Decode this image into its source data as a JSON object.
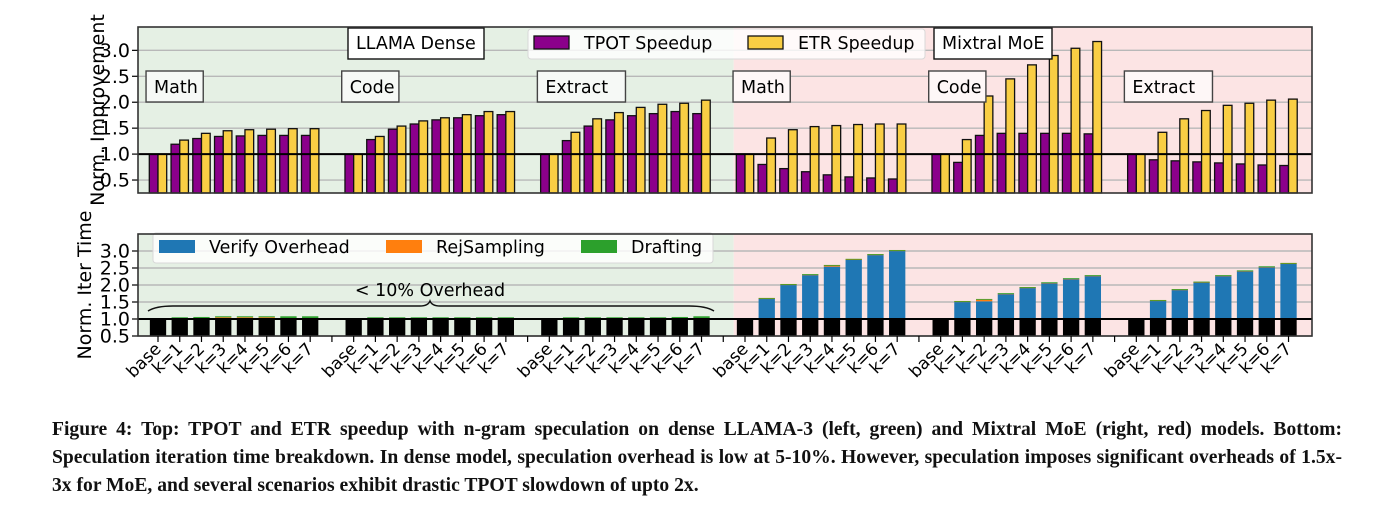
{
  "chart_data": [
    {
      "type": "bar",
      "panel": "top",
      "ylabel": "Norm. Improvement",
      "ylim": [
        0.25,
        3.45
      ],
      "yticks": [
        "0.5",
        "1.0",
        "1.5",
        "2.0",
        "2.5",
        "3.0"
      ],
      "ytick_values": [
        0.5,
        1.0,
        1.5,
        2.0,
        2.5,
        3.0
      ],
      "grid": true,
      "reference_line": 1.0,
      "legend": {
        "placement": "top-center",
        "entries": [
          "TPOT Speedup",
          "ETR Speedup"
        ]
      },
      "colors": {
        "TPOT Speedup": "#8b008b",
        "ETR Speedup": "#f9ce44"
      },
      "model_labels": [
        "LLAMA Dense",
        "Mixtral MoE"
      ],
      "categories": [
        "base",
        "k=1",
        "k=2",
        "k=3",
        "k=4",
        "k=5",
        "k=6",
        "k=7"
      ],
      "groups": [
        {
          "model": "LLAMA Dense",
          "task": "Math",
          "series": [
            {
              "name": "TPOT Speedup",
              "values": [
                1.0,
                1.19,
                1.3,
                1.34,
                1.35,
                1.36,
                1.36,
                1.36
              ]
            },
            {
              "name": "ETR Speedup",
              "values": [
                1.0,
                1.27,
                1.4,
                1.45,
                1.47,
                1.48,
                1.49,
                1.49
              ]
            }
          ]
        },
        {
          "model": "LLAMA Dense",
          "task": "Code",
          "series": [
            {
              "name": "TPOT Speedup",
              "values": [
                1.0,
                1.28,
                1.48,
                1.58,
                1.66,
                1.7,
                1.74,
                1.76
              ]
            },
            {
              "name": "ETR Speedup",
              "values": [
                1.0,
                1.34,
                1.54,
                1.64,
                1.7,
                1.76,
                1.82,
                1.82
              ]
            }
          ]
        },
        {
          "model": "LLAMA Dense",
          "task": "Extract",
          "series": [
            {
              "name": "TPOT Speedup",
              "values": [
                1.0,
                1.26,
                1.54,
                1.66,
                1.74,
                1.78,
                1.82,
                1.78
              ]
            },
            {
              "name": "ETR Speedup",
              "values": [
                1.0,
                1.42,
                1.68,
                1.8,
                1.9,
                1.96,
                1.98,
                2.04
              ]
            }
          ]
        },
        {
          "model": "Mixtral MoE",
          "task": "Math",
          "series": [
            {
              "name": "TPOT Speedup",
              "values": [
                1.0,
                0.8,
                0.72,
                0.66,
                0.6,
                0.56,
                0.54,
                0.52
              ]
            },
            {
              "name": "ETR Speedup",
              "values": [
                1.0,
                1.31,
                1.47,
                1.53,
                1.55,
                1.57,
                1.58,
                1.58
              ]
            }
          ]
        },
        {
          "model": "Mixtral MoE",
          "task": "Code",
          "series": [
            {
              "name": "TPOT Speedup",
              "values": [
                1.0,
                0.84,
                1.36,
                1.4,
                1.4,
                1.4,
                1.4,
                1.39
              ]
            },
            {
              "name": "ETR Speedup",
              "values": [
                1.0,
                1.28,
                2.12,
                2.45,
                2.72,
                2.9,
                3.04,
                3.17
              ]
            }
          ]
        },
        {
          "model": "Mixtral MoE",
          "task": "Extract",
          "series": [
            {
              "name": "TPOT Speedup",
              "values": [
                1.0,
                0.89,
                0.87,
                0.85,
                0.83,
                0.81,
                0.79,
                0.78
              ]
            },
            {
              "name": "ETR Speedup",
              "values": [
                1.0,
                1.42,
                1.68,
                1.84,
                1.94,
                1.98,
                2.04,
                2.06
              ]
            }
          ]
        }
      ]
    },
    {
      "type": "bar",
      "stacked": true,
      "panel": "bottom",
      "ylabel": "Norm. Iter Time",
      "ylim": [
        0.5,
        3.5
      ],
      "yticks": [
        "0.5",
        "1.0",
        "1.5",
        "2.0",
        "2.5",
        "3.0"
      ],
      "ytick_values": [
        0.5,
        1.0,
        1.5,
        2.0,
        2.5,
        3.0
      ],
      "grid": true,
      "reference_line": 1.0,
      "legend": {
        "placement": "top-left",
        "entries": [
          "Verify Overhead",
          "RejSampling",
          "Drafting"
        ]
      },
      "colors": {
        "Base": "#000000",
        "Verify Overhead": "#1f77b4",
        "RejSampling": "#ff7f0e",
        "Drafting": "#2ca02c"
      },
      "annotation": "< 10% Overhead",
      "categories": [
        "base",
        "k=1",
        "k=2",
        "k=3",
        "k=4",
        "k=5",
        "k=6",
        "k=7"
      ],
      "groups": [
        {
          "model": "LLAMA Dense",
          "task": "Math",
          "series": [
            {
              "name": "Base",
              "values": [
                1.0,
                1.0,
                1.0,
                1.0,
                1.0,
                1.0,
                1.0,
                1.0
              ]
            },
            {
              "name": "Verify Overhead",
              "values": [
                0,
                0.02,
                0.0,
                0.0,
                0.0,
                0.0,
                0.0,
                0.0
              ]
            },
            {
              "name": "RejSampling",
              "values": [
                0,
                0.01,
                0.03,
                0.05,
                0.05,
                0.05,
                0.03,
                0.03
              ]
            },
            {
              "name": "Drafting",
              "values": [
                0,
                0.02,
                0.03,
                0.03,
                0.03,
                0.03,
                0.05,
                0.05
              ]
            }
          ]
        },
        {
          "model": "LLAMA Dense",
          "task": "Code",
          "series": [
            {
              "name": "Base",
              "values": [
                1.0,
                1.0,
                1.0,
                1.0,
                1.0,
                1.0,
                1.0,
                1.0
              ]
            },
            {
              "name": "Verify Overhead",
              "values": [
                0,
                0.0,
                0.0,
                0.0,
                0.0,
                0.0,
                0.0,
                0.0
              ]
            },
            {
              "name": "RejSampling",
              "values": [
                0,
                0.02,
                0.02,
                0.02,
                0.02,
                0.02,
                0.02,
                0.02
              ]
            },
            {
              "name": "Drafting",
              "values": [
                0,
                0.03,
                0.03,
                0.03,
                0.03,
                0.03,
                0.03,
                0.03
              ]
            }
          ]
        },
        {
          "model": "LLAMA Dense",
          "task": "Extract",
          "series": [
            {
              "name": "Base",
              "values": [
                1.0,
                1.0,
                1.0,
                1.0,
                1.0,
                1.0,
                1.0,
                1.0
              ]
            },
            {
              "name": "Verify Overhead",
              "values": [
                0,
                0.0,
                0.0,
                0.0,
                0.0,
                0.0,
                0.01,
                0.01
              ]
            },
            {
              "name": "RejSampling",
              "values": [
                0,
                0.02,
                0.02,
                0.02,
                0.02,
                0.02,
                0.02,
                0.02
              ]
            },
            {
              "name": "Drafting",
              "values": [
                0,
                0.03,
                0.03,
                0.03,
                0.03,
                0.03,
                0.03,
                0.05
              ]
            }
          ]
        },
        {
          "model": "Mixtral MoE",
          "task": "Math",
          "series": [
            {
              "name": "Base",
              "values": [
                1.0,
                1.0,
                1.0,
                1.0,
                1.0,
                1.0,
                1.0,
                1.0
              ]
            },
            {
              "name": "Verify Overhead",
              "values": [
                0,
                0.6,
                1.01,
                1.3,
                1.54,
                1.75,
                1.89,
                2.01
              ]
            },
            {
              "name": "RejSampling",
              "values": [
                0,
                0.01,
                0.01,
                0.01,
                0.04,
                0.01,
                0.01,
                0.01
              ]
            },
            {
              "name": "Drafting",
              "values": [
                0,
                0.01,
                0.01,
                0.01,
                0.01,
                0.01,
                0.01,
                0.01
              ]
            }
          ]
        },
        {
          "model": "Mixtral MoE",
          "task": "Code",
          "series": [
            {
              "name": "Base",
              "values": [
                1.0,
                1.0,
                1.0,
                1.0,
                1.0,
                1.0,
                1.0,
                1.0
              ]
            },
            {
              "name": "Verify Overhead",
              "values": [
                0,
                0.51,
                0.52,
                0.74,
                0.92,
                1.06,
                1.18,
                1.27
              ]
            },
            {
              "name": "RejSampling",
              "values": [
                0,
                0.01,
                0.05,
                0.01,
                0.01,
                0.01,
                0.01,
                0.01
              ]
            },
            {
              "name": "Drafting",
              "values": [
                0,
                0.01,
                0.02,
                0.01,
                0.01,
                0.01,
                0.01,
                0.01
              ]
            }
          ]
        },
        {
          "model": "Mixtral MoE",
          "task": "Extract",
          "series": [
            {
              "name": "Base",
              "values": [
                1.0,
                1.0,
                1.0,
                1.0,
                1.0,
                1.0,
                1.0,
                1.0
              ]
            },
            {
              "name": "Verify Overhead",
              "values": [
                0,
                0.54,
                0.86,
                1.08,
                1.27,
                1.41,
                1.53,
                1.63
              ]
            },
            {
              "name": "RejSampling",
              "values": [
                0,
                0.01,
                0.01,
                0.01,
                0.01,
                0.01,
                0.01,
                0.01
              ]
            },
            {
              "name": "Drafting",
              "values": [
                0,
                0.01,
                0.01,
                0.01,
                0.01,
                0.01,
                0.01,
                0.01
              ]
            }
          ]
        }
      ]
    }
  ],
  "task_labels": [
    "Math",
    "Code",
    "Extract",
    "Math",
    "Code",
    "Extract"
  ],
  "region_colors": {
    "dense": "#e5f0e4",
    "moe": "#fce4e4"
  },
  "caption": "Figure 4: Top: TPOT and ETR speedup with n-gram speculation on dense LLAMA-3 (left, green) and Mixtral MoE (right, red) models. Bottom: Speculation iteration time breakdown. In dense model, speculation overhead is low at 5-10%. However, speculation imposes significant overheads of 1.5x-3x for MoE, and several scenarios exhibit drastic TPOT slowdown of upto 2x."
}
